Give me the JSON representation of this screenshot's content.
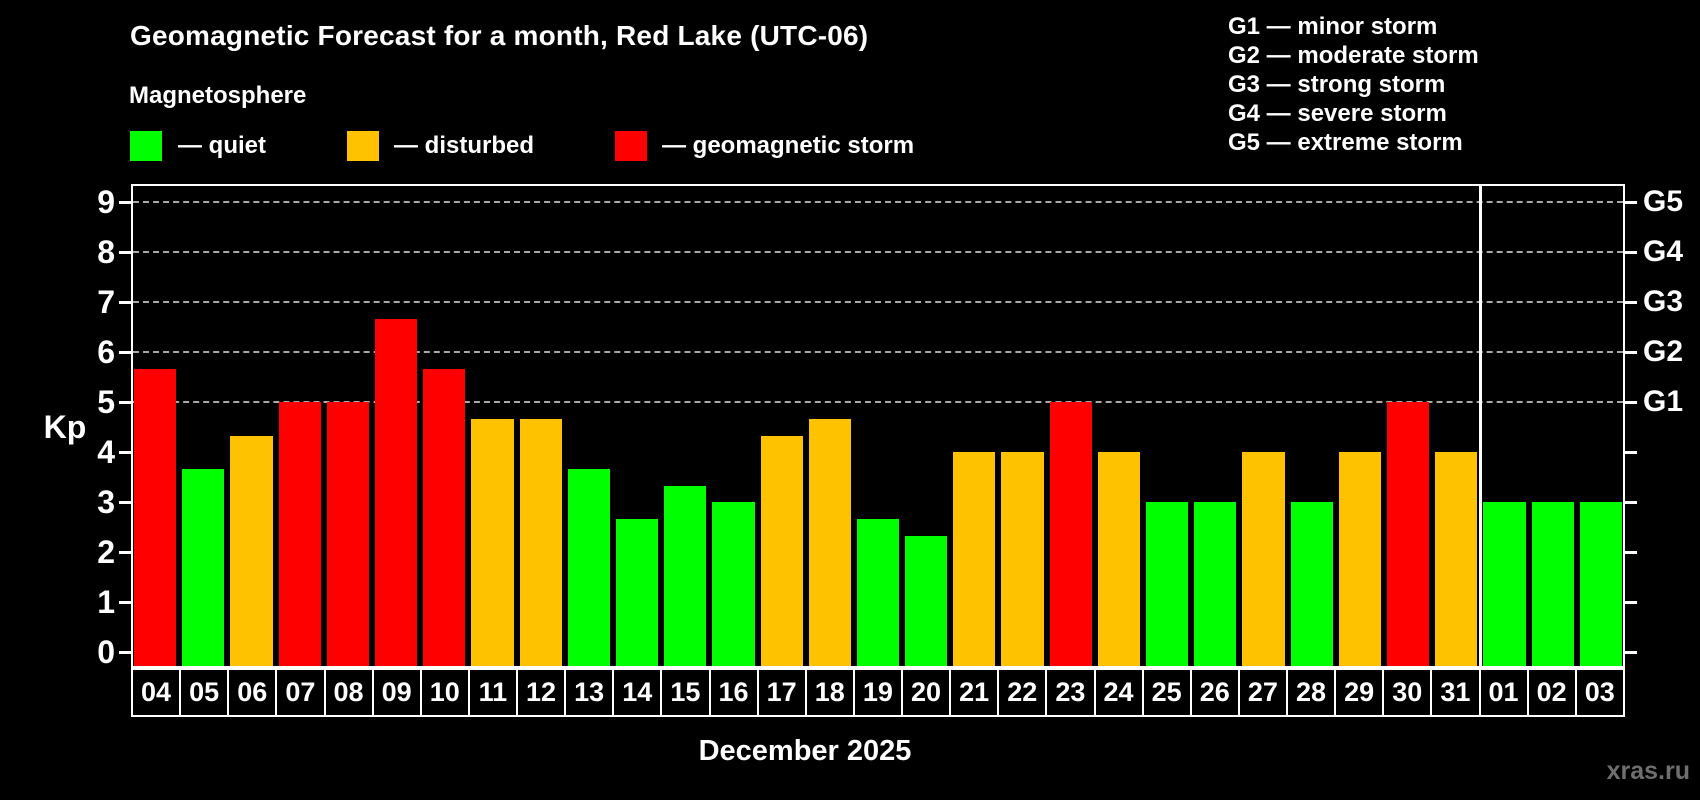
{
  "title": "Geomagnetic Forecast for a month, Red Lake (UTC-06)",
  "subtitle": "Magnetosphere",
  "legend": {
    "quiet_label": "— quiet",
    "disturbed_label": "— disturbed",
    "storm_label": "— geomagnetic storm"
  },
  "g_legend": [
    "G1 — minor storm",
    "G2 — moderate storm",
    "G3 — strong storm",
    "G4 — severe storm",
    "G5 — extreme storm"
  ],
  "colors": {
    "quiet": "#00ff00",
    "disturbed": "#ffc200",
    "storm": "#ff0000",
    "grid": "#a9a9a9",
    "frame": "#ffffff",
    "watermark": "#6f6f6f"
  },
  "footer": {
    "month_label": "December 2025",
    "watermark": "xras.ru"
  },
  "chart_data": {
    "type": "bar",
    "title": "Geomagnetic Forecast for a month, Red Lake (UTC-06)",
    "subtitle": "Magnetosphere",
    "xlabel": "December 2025",
    "ylabel": "Kp",
    "ylim": [
      -0.33,
      9.37
    ],
    "y_ticks": [
      0,
      1,
      2,
      3,
      4,
      5,
      6,
      7,
      8,
      9
    ],
    "gridlines_at": [
      5,
      6,
      7,
      8,
      9
    ],
    "grid": "dashed horizontal at storm levels only",
    "legend_position": "top",
    "right_axis_labels": [
      {
        "label": "G1",
        "kp": 5
      },
      {
        "label": "G2",
        "kp": 6
      },
      {
        "label": "G3",
        "kp": 7
      },
      {
        "label": "G4",
        "kp": 8
      },
      {
        "label": "G5",
        "kp": 9
      }
    ],
    "status_legend": [
      {
        "status": "quiet",
        "label": "— quiet"
      },
      {
        "status": "disturbed",
        "label": "— disturbed"
      },
      {
        "status": "storm",
        "label": "— geomagnetic storm"
      }
    ],
    "separator_after_day": "31",
    "days": [
      {
        "day": "04",
        "kp": 5.67,
        "status": "storm"
      },
      {
        "day": "05",
        "kp": 3.67,
        "status": "quiet"
      },
      {
        "day": "06",
        "kp": 4.33,
        "status": "disturbed"
      },
      {
        "day": "07",
        "kp": 5.0,
        "status": "storm"
      },
      {
        "day": "08",
        "kp": 5.0,
        "status": "storm"
      },
      {
        "day": "09",
        "kp": 6.67,
        "status": "storm"
      },
      {
        "day": "10",
        "kp": 5.67,
        "status": "storm"
      },
      {
        "day": "11",
        "kp": 4.67,
        "status": "disturbed"
      },
      {
        "day": "12",
        "kp": 4.67,
        "status": "disturbed"
      },
      {
        "day": "13",
        "kp": 3.67,
        "status": "quiet"
      },
      {
        "day": "14",
        "kp": 2.67,
        "status": "quiet"
      },
      {
        "day": "15",
        "kp": 3.33,
        "status": "quiet"
      },
      {
        "day": "16",
        "kp": 3.0,
        "status": "quiet"
      },
      {
        "day": "17",
        "kp": 4.33,
        "status": "disturbed"
      },
      {
        "day": "18",
        "kp": 4.67,
        "status": "disturbed"
      },
      {
        "day": "19",
        "kp": 2.67,
        "status": "quiet"
      },
      {
        "day": "20",
        "kp": 2.33,
        "status": "quiet"
      },
      {
        "day": "21",
        "kp": 4.0,
        "status": "disturbed"
      },
      {
        "day": "22",
        "kp": 4.0,
        "status": "disturbed"
      },
      {
        "day": "23",
        "kp": 5.0,
        "status": "storm"
      },
      {
        "day": "24",
        "kp": 4.0,
        "status": "disturbed"
      },
      {
        "day": "25",
        "kp": 3.0,
        "status": "quiet"
      },
      {
        "day": "26",
        "kp": 3.0,
        "status": "quiet"
      },
      {
        "day": "27",
        "kp": 4.0,
        "status": "disturbed"
      },
      {
        "day": "28",
        "kp": 3.0,
        "status": "quiet"
      },
      {
        "day": "29",
        "kp": 4.0,
        "status": "disturbed"
      },
      {
        "day": "30",
        "kp": 5.0,
        "status": "storm"
      },
      {
        "day": "31",
        "kp": 4.0,
        "status": "disturbed"
      },
      {
        "day": "01",
        "kp": 3.0,
        "status": "quiet"
      },
      {
        "day": "02",
        "kp": 3.0,
        "status": "quiet"
      },
      {
        "day": "03",
        "kp": 3.0,
        "status": "quiet"
      }
    ]
  }
}
